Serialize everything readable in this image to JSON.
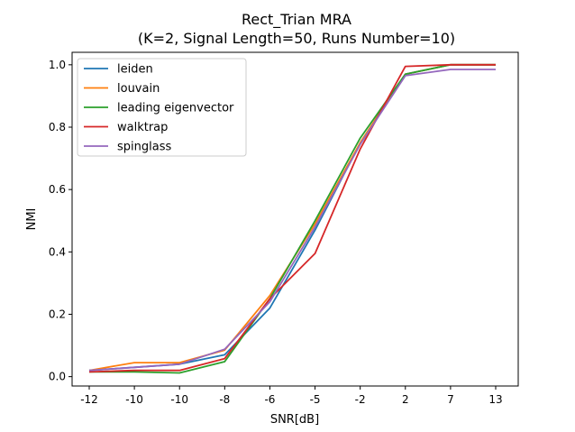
{
  "chart_data": {
    "type": "line",
    "title": "Rect_Trian MRA",
    "subtitle": "(K=2, Signal Length=50, Runs Number=10)",
    "xlabel": "SNR[dB]",
    "ylabel": "NMI",
    "categories": [
      "-12",
      "-10",
      "-10",
      "-8",
      "-6",
      "-5",
      "-2",
      "2",
      "7",
      "13"
    ],
    "ylim": [
      -0.03,
      1.04
    ],
    "yticks": [
      "0.0",
      "0.2",
      "0.4",
      "0.6",
      "0.8",
      "1.0"
    ],
    "ytick_values": [
      0.0,
      0.2,
      0.4,
      0.6,
      0.8,
      1.0
    ],
    "grid": false,
    "legend_position": "upper-left",
    "series": [
      {
        "name": "leiden",
        "color": "#1f77b4",
        "values": [
          0.02,
          0.03,
          0.04,
          0.07,
          0.22,
          0.47,
          0.75,
          0.97,
          1.0,
          1.0
        ]
      },
      {
        "name": "louvain",
        "color": "#ff7f0e",
        "values": [
          0.02,
          0.045,
          0.045,
          0.085,
          0.26,
          0.49,
          0.75,
          0.97,
          1.0,
          1.0
        ]
      },
      {
        "name": "leading eigenvector",
        "color": "#2ca02c",
        "values": [
          0.015,
          0.015,
          0.012,
          0.048,
          0.25,
          0.5,
          0.765,
          0.97,
          1.0,
          1.0
        ]
      },
      {
        "name": "walktrap",
        "color": "#d62728",
        "values": [
          0.015,
          0.02,
          0.02,
          0.058,
          0.25,
          0.395,
          0.73,
          0.995,
          1.0,
          1.0
        ]
      },
      {
        "name": "spinglass",
        "color": "#9467bd",
        "values": [
          0.02,
          0.03,
          0.04,
          0.088,
          0.24,
          0.48,
          0.745,
          0.965,
          0.985,
          0.985
        ]
      }
    ]
  }
}
